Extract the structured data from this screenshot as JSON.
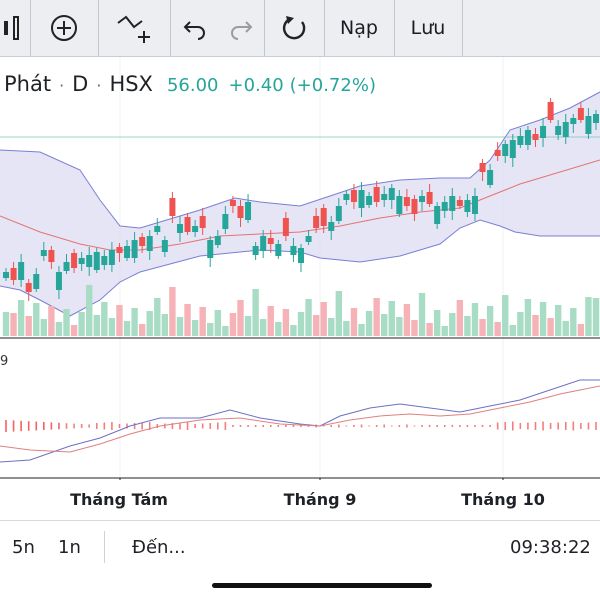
{
  "toolbar": {
    "load_label": "Nạp",
    "save_label": "Lưu"
  },
  "symbol": {
    "name": "Phát",
    "interval": "D",
    "exchange": "HSX",
    "price": "56.00",
    "change": "+0.40",
    "change_pct": "(+0.72%)"
  },
  "indicator_label_fragment": "9",
  "time_axis": {
    "labels": [
      "Tháng Tám",
      "Tháng 9",
      "Tháng 10"
    ]
  },
  "bottom_bar": {
    "range_5y": "5n",
    "range_1y": "1n",
    "goto_label": "Đến...",
    "clock": "09:38:22"
  },
  "colors": {
    "up": "#26a69a",
    "down": "#ef5350",
    "band_fill": "#dcdcf2",
    "band_line": "#7b7fd4",
    "ma_line": "#e57373",
    "price_line": "#5fb8a8",
    "macd_line": "#6b6fc8",
    "signal_line": "#e08080"
  },
  "chart_data": {
    "type": "candlestick",
    "x_labels": [
      "Tháng Tám",
      "Tháng 9",
      "Tháng 10"
    ],
    "last_price": 56.0,
    "candles_up_down": [
      "up",
      "down",
      "up",
      "down",
      "up",
      "up",
      "down",
      "up",
      "up",
      "down",
      "up",
      "up",
      "up",
      "up",
      "up",
      "down",
      "up",
      "up",
      "down",
      "up",
      "up",
      "up",
      "down",
      "up",
      "down",
      "up",
      "down",
      "up",
      "up",
      "up",
      "down",
      "down",
      "up",
      "up",
      "up",
      "down",
      "up",
      "down",
      "up",
      "up",
      "up",
      "down",
      "down",
      "up",
      "up",
      "up",
      "down",
      "up",
      "up",
      "down",
      "up",
      "up",
      "up",
      "down",
      "down",
      "up",
      "down",
      "up",
      "up",
      "up",
      "down",
      "up",
      "up",
      "down",
      "up",
      "down",
      "up",
      "up",
      "up",
      "up",
      "down",
      "up",
      "down",
      "up",
      "up",
      "up",
      "down",
      "up",
      "up"
    ]
  }
}
